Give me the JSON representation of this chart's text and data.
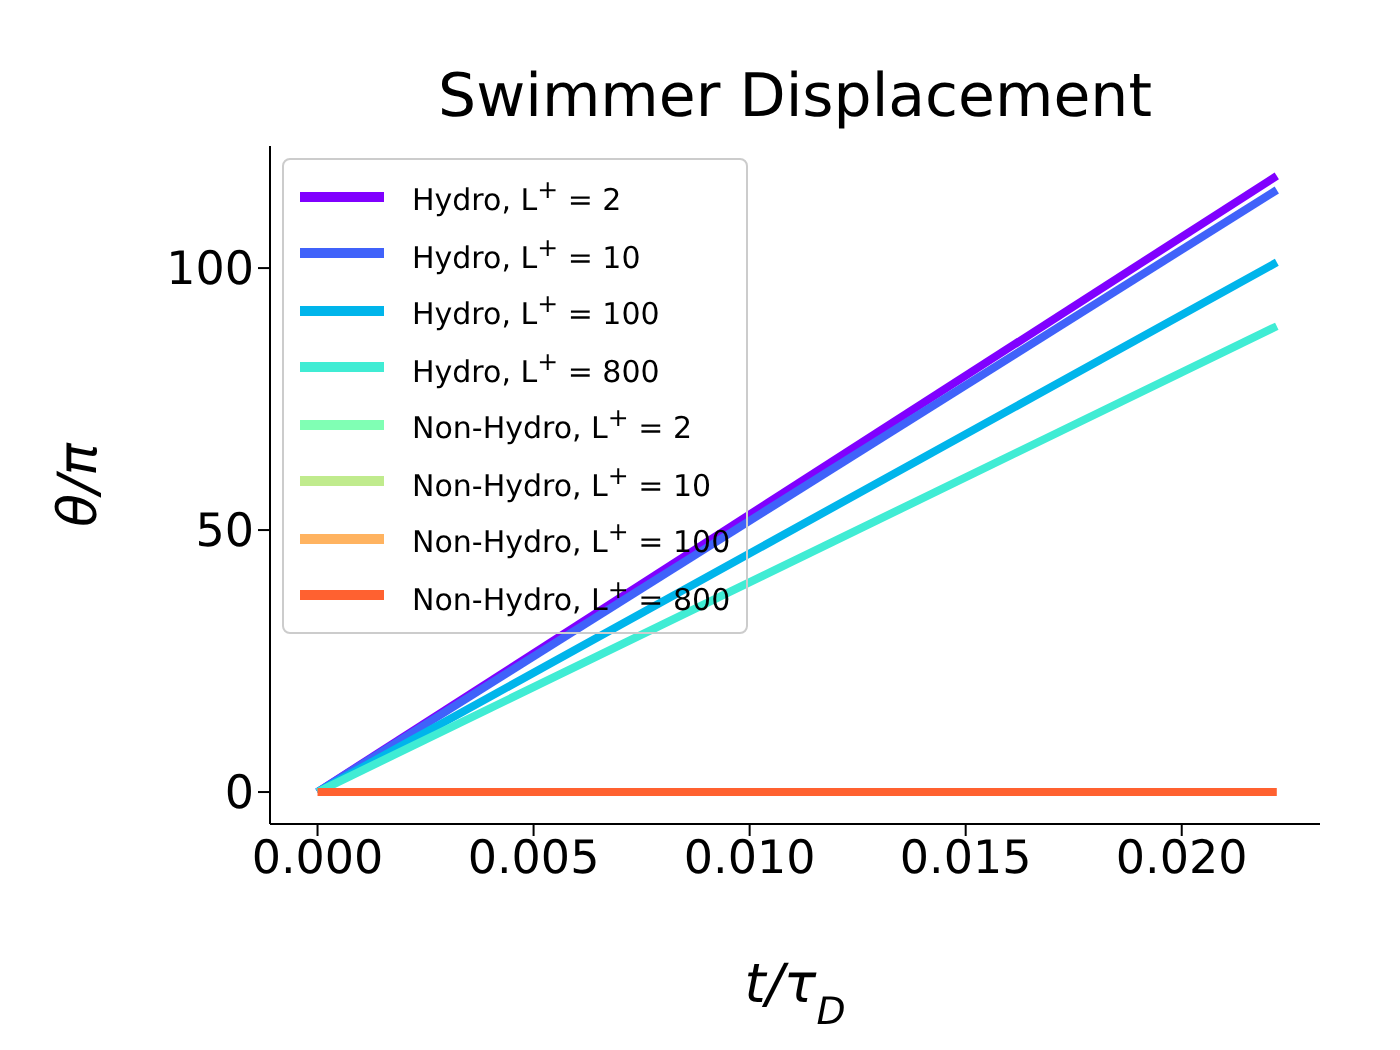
{
  "chart_data": {
    "type": "line",
    "title": "Swimmer Displacement",
    "xlabel": "t/τ$_{D}$",
    "ylabel": "θ/π",
    "x": [
      0,
      0.0222
    ],
    "series": [
      {
        "name": "Hydro, L$^{+}$ = 2",
        "color": "#8000ff",
        "values": [
          0,
          117.6
        ]
      },
      {
        "name": "Hydro, L$^{+}$ = 10",
        "color": "#4062fa",
        "values": [
          0,
          114.9
        ]
      },
      {
        "name": "Hydro, L$^{+}$ = 100",
        "color": "#00b5eb",
        "values": [
          0,
          101.1
        ]
      },
      {
        "name": "Hydro, L$^{+}$ = 800",
        "color": "#40ecd4",
        "values": [
          0,
          88.9
        ]
      },
      {
        "name": "Non-Hydro, L$^{+}$ = 2",
        "color": "#80ffb4",
        "values": [
          null,
          null
        ]
      },
      {
        "name": "Non-Hydro, L$^{+}$ = 10",
        "color": "#c0eb8d",
        "values": [
          null,
          null
        ]
      },
      {
        "name": "Non-Hydro, L$^{+}$ = 100",
        "color": "#ffb360",
        "values": [
          null,
          null
        ]
      },
      {
        "name": "Non-Hydro, L$^{+}$ = 800",
        "color": "#ff6130",
        "values": [
          0,
          0
        ]
      }
    ],
    "xlim": [
      -0.0011,
      0.0232
    ],
    "xticks": [
      {
        "value": 0,
        "label": "0.000"
      },
      {
        "value": 0.005,
        "label": "0.005"
      },
      {
        "value": 0.01,
        "label": "0.010"
      },
      {
        "value": 0.015,
        "label": "0.015"
      },
      {
        "value": 0.02,
        "label": "0.020"
      }
    ],
    "ylim": [
      -6.1,
      123.3
    ],
    "yticks": [
      0,
      50,
      100
    ],
    "legend": "top left",
    "grid": false,
    "marker": "none",
    "line_style": "solid"
  }
}
